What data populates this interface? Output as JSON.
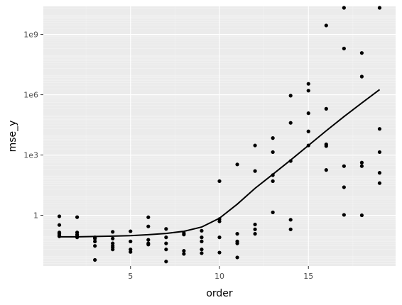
{
  "chart_data": {
    "type": "scatter",
    "xlabel": "order",
    "ylabel": "mse_y",
    "x_ticks": [
      5,
      10,
      15
    ],
    "y_ticks": [
      1,
      1000,
      1000000,
      1000000000
    ],
    "y_tick_labels": [
      "1",
      "1e3",
      "1e6",
      "1e9"
    ],
    "y_scale": "log10",
    "xlim": [
      0.1,
      19.9
    ],
    "ylim": [
      0.003,
      25000000000
    ],
    "grid": true,
    "colors": {
      "panel_background": "#ebebeb",
      "grid_major": "#ffffff",
      "grid_minor": "#f4f4f4",
      "points": "#000000",
      "smooth_line": "#000000"
    },
    "points": [
      {
        "x": 1,
        "y": 0.89
      },
      {
        "x": 1,
        "y": 0.33
      },
      {
        "x": 1,
        "y": 0.14
      },
      {
        "x": 1,
        "y": 0.12
      },
      {
        "x": 1,
        "y": 0.1
      },
      {
        "x": 1,
        "y": 0.09
      },
      {
        "x": 2,
        "y": 0.81
      },
      {
        "x": 2,
        "y": 0.14
      },
      {
        "x": 2,
        "y": 0.11
      },
      {
        "x": 2,
        "y": 0.09
      },
      {
        "x": 2,
        "y": 0.08
      },
      {
        "x": 3,
        "y": 0.08
      },
      {
        "x": 3,
        "y": 0.07
      },
      {
        "x": 3,
        "y": 0.05
      },
      {
        "x": 3,
        "y": 0.03
      },
      {
        "x": 3,
        "y": 0.006
      },
      {
        "x": 4,
        "y": 0.15
      },
      {
        "x": 4,
        "y": 0.07
      },
      {
        "x": 4,
        "y": 0.04
      },
      {
        "x": 4,
        "y": 0.03
      },
      {
        "x": 4,
        "y": 0.025
      },
      {
        "x": 4,
        "y": 0.02
      },
      {
        "x": 5,
        "y": 0.16
      },
      {
        "x": 5,
        "y": 0.05
      },
      {
        "x": 5,
        "y": 0.02
      },
      {
        "x": 5,
        "y": 0.015
      },
      {
        "x": 6,
        "y": 0.8
      },
      {
        "x": 6,
        "y": 0.28
      },
      {
        "x": 6,
        "y": 0.06
      },
      {
        "x": 6,
        "y": 0.04
      },
      {
        "x": 6,
        "y": 0.035
      },
      {
        "x": 7,
        "y": 0.21
      },
      {
        "x": 7,
        "y": 0.08
      },
      {
        "x": 7,
        "y": 0.04
      },
      {
        "x": 7,
        "y": 0.02
      },
      {
        "x": 7,
        "y": 0.005
      },
      {
        "x": 8,
        "y": 0.13
      },
      {
        "x": 8,
        "y": 0.11
      },
      {
        "x": 8,
        "y": 0.017
      },
      {
        "x": 8,
        "y": 0.012
      },
      {
        "x": 9,
        "y": 0.17
      },
      {
        "x": 9,
        "y": 0.08
      },
      {
        "x": 9,
        "y": 0.05
      },
      {
        "x": 9,
        "y": 0.02
      },
      {
        "x": 9,
        "y": 0.013
      },
      {
        "x": 10,
        "y": 50
      },
      {
        "x": 10,
        "y": 0.65
      },
      {
        "x": 10,
        "y": 0.5
      },
      {
        "x": 10,
        "y": 0.08
      },
      {
        "x": 10,
        "y": 0.014
      },
      {
        "x": 11,
        "y": 340
      },
      {
        "x": 11,
        "y": 0.12
      },
      {
        "x": 11,
        "y": 0.05
      },
      {
        "x": 11,
        "y": 0.04
      },
      {
        "x": 11,
        "y": 0.008
      },
      {
        "x": 12,
        "y": 3000
      },
      {
        "x": 12,
        "y": 160
      },
      {
        "x": 12,
        "y": 0.35
      },
      {
        "x": 12,
        "y": 0.2
      },
      {
        "x": 12,
        "y": 0.12
      },
      {
        "x": 13,
        "y": 7000
      },
      {
        "x": 13,
        "y": 1400
      },
      {
        "x": 13,
        "y": 100
      },
      {
        "x": 13,
        "y": 50
      },
      {
        "x": 13,
        "y": 1.4
      },
      {
        "x": 14,
        "y": 900000
      },
      {
        "x": 14,
        "y": 40000
      },
      {
        "x": 14,
        "y": 500
      },
      {
        "x": 14,
        "y": 0.6
      },
      {
        "x": 14,
        "y": 0.2
      },
      {
        "x": 15,
        "y": 3500000
      },
      {
        "x": 15,
        "y": 1600000
      },
      {
        "x": 15,
        "y": 120000
      },
      {
        "x": 15,
        "y": 15000
      },
      {
        "x": 15,
        "y": 3000
      },
      {
        "x": 16,
        "y": 2800000000
      },
      {
        "x": 16,
        "y": 200000
      },
      {
        "x": 16,
        "y": 3400
      },
      {
        "x": 16,
        "y": 2800
      },
      {
        "x": 16,
        "y": 180
      },
      {
        "x": 17,
        "y": 35000000000
      },
      {
        "x": 17,
        "y": 200000000
      },
      {
        "x": 17,
        "y": 280
      },
      {
        "x": 17,
        "y": 25
      },
      {
        "x": 17,
        "y": 1.05
      },
      {
        "x": 18,
        "y": 120000000
      },
      {
        "x": 18,
        "y": 8000000
      },
      {
        "x": 18,
        "y": 420
      },
      {
        "x": 18,
        "y": 280
      },
      {
        "x": 18,
        "y": 1.0
      },
      {
        "x": 19,
        "y": 70000000000
      },
      {
        "x": 19,
        "y": 20000
      },
      {
        "x": 19,
        "y": 1400
      },
      {
        "x": 19,
        "y": 130
      },
      {
        "x": 19,
        "y": 40
      }
    ],
    "smooth": [
      {
        "x": 1,
        "y": 0.085
      },
      {
        "x": 2,
        "y": 0.085
      },
      {
        "x": 3,
        "y": 0.088
      },
      {
        "x": 4,
        "y": 0.092
      },
      {
        "x": 5,
        "y": 0.097
      },
      {
        "x": 6,
        "y": 0.108
      },
      {
        "x": 7,
        "y": 0.125
      },
      {
        "x": 8,
        "y": 0.16
      },
      {
        "x": 9,
        "y": 0.26
      },
      {
        "x": 10,
        "y": 0.72
      },
      {
        "x": 11,
        "y": 3.6
      },
      {
        "x": 12,
        "y": 22
      },
      {
        "x": 13,
        "y": 110
      },
      {
        "x": 14,
        "y": 560
      },
      {
        "x": 15,
        "y": 3000
      },
      {
        "x": 16,
        "y": 16000
      },
      {
        "x": 17,
        "y": 82000
      },
      {
        "x": 18,
        "y": 390000
      },
      {
        "x": 19,
        "y": 1800000
      }
    ]
  }
}
